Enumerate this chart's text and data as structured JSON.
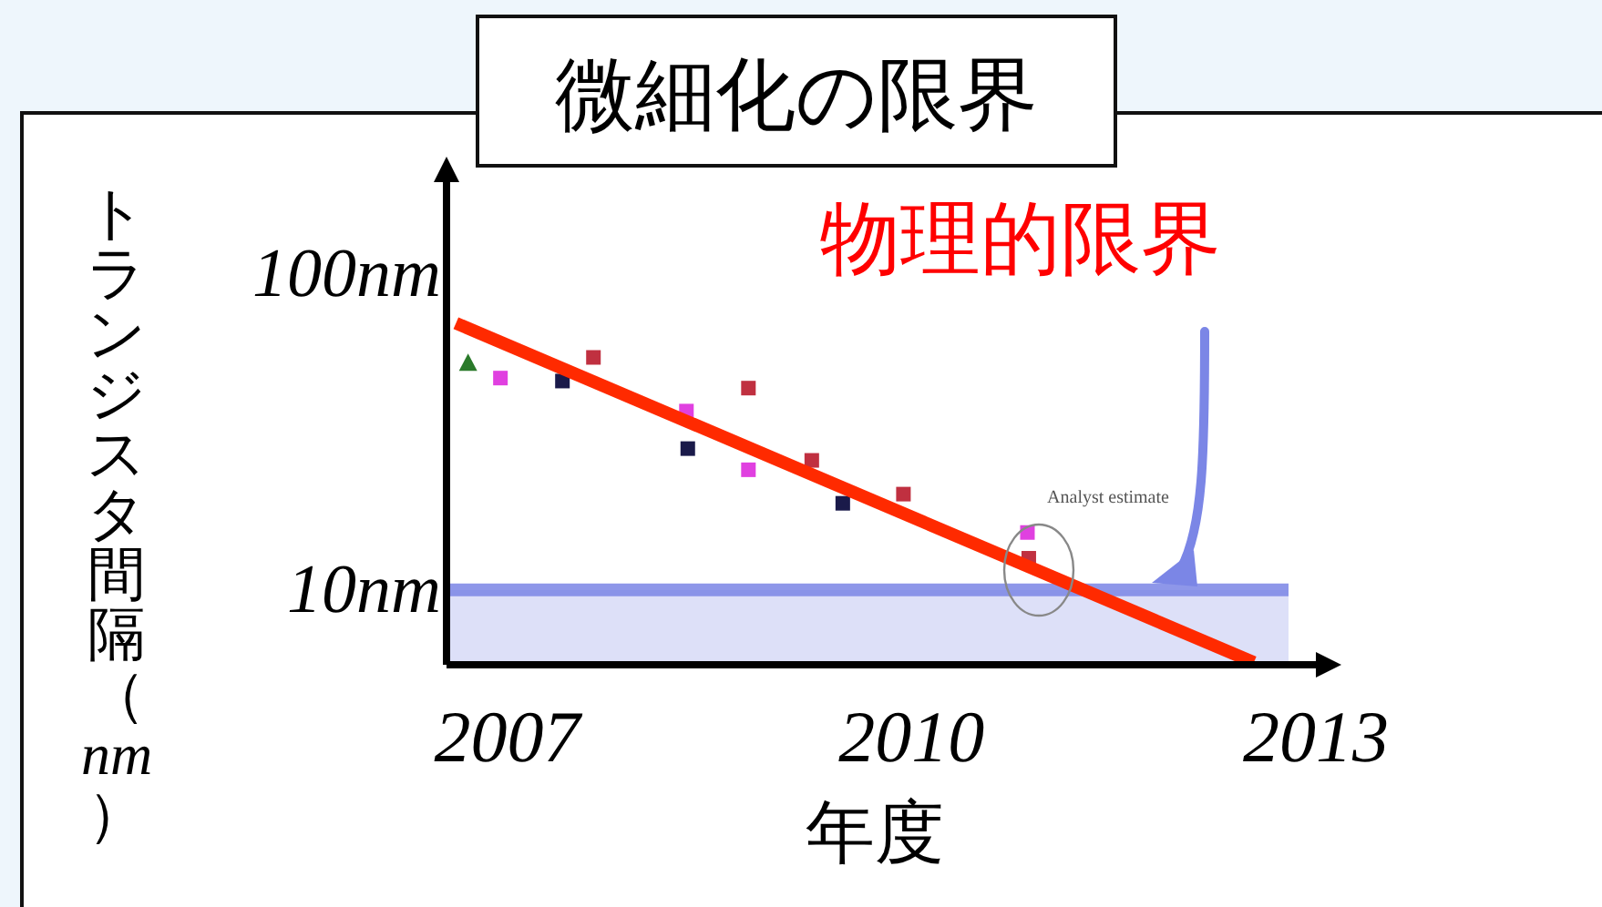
{
  "chart_data": {
    "type": "scatter",
    "title": "微細化の限界",
    "xlabel": "年度",
    "ylabel": "トランジスタ間隔（*nm*）",
    "log": "y",
    "marker": "square",
    "xlim": [
      2006.55,
      2013
    ],
    "xticks": [
      2007,
      2010,
      2013
    ],
    "ylim": [
      5.8,
      195
    ],
    "yticks": [
      {
        "value": 100,
        "label": "100nm"
      },
      {
        "value": 10,
        "label": "10nm"
      }
    ],
    "series": [
      {
        "color": "#e040e0",
        "x": [
          2006.95,
          2008.33,
          2008.79,
          2010.86
        ],
        "values": [
          46.8,
          36.8,
          24.0,
          15.2
        ]
      },
      {
        "color": "#1a1a4a",
        "x": [
          2007.41,
          2008.34,
          2009.49
        ],
        "values": [
          45.8,
          28.0,
          18.8
        ]
      },
      {
        "color": "#2a7a2a",
        "marker": "triangle",
        "x": [
          2006.71
        ],
        "values": [
          52
        ]
      },
      {
        "color": "#c03040",
        "x": [
          2007.64,
          2008.79,
          2009.26,
          2009.94,
          2010.87
        ],
        "values": [
          54.4,
          43.5,
          25.7,
          20.1,
          12.6
        ]
      },
      {
        "type": "line",
        "color": "#ff2a00",
        "marker": "none",
        "x": [
          2006.62,
          2012.54
        ],
        "values": [
          69.8,
          5.9
        ]
      }
    ],
    "ref_lines": [
      {
        "axis": "y",
        "value": 10,
        "label": "物理的限界",
        "color": "#7b86e6"
      }
    ],
    "bands": [
      {
        "axis": "y",
        "from": 5.8,
        "to": 10,
        "color": "#dde0f8"
      }
    ],
    "annotations": [
      "Analyst estimate"
    ]
  }
}
